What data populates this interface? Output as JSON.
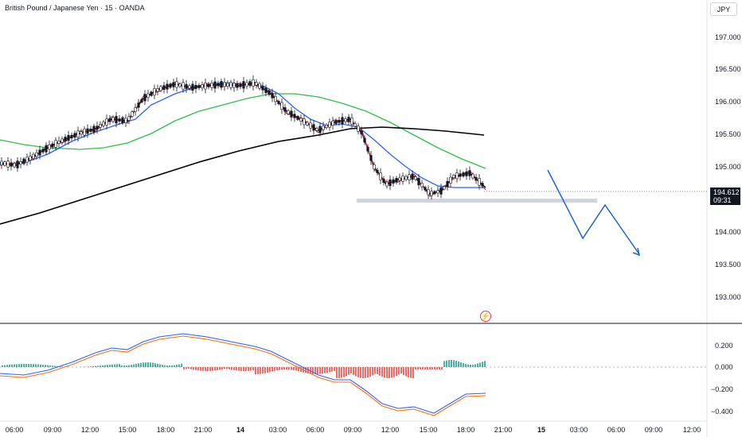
{
  "symbol": {
    "title": "British Pound / Japanese Yen · 15 · OANDA"
  },
  "currency_button": "JPY",
  "price_axis": {
    "labels": [
      "197.000",
      "196.500",
      "196.000",
      "195.500",
      "195.000",
      "194.000",
      "193.500",
      "193.000"
    ]
  },
  "last_price": {
    "price": "194.612",
    "countdown": "09:31"
  },
  "oscillator_axis": {
    "labels": [
      "0.200",
      "0.000",
      "−0.200",
      "−0.400"
    ]
  },
  "time_axis": {
    "labels": [
      "06:00",
      "09:00",
      "12:00",
      "15:00",
      "18:00",
      "21:00",
      "14",
      "03:00",
      "06:00",
      "09:00",
      "12:00",
      "15:00",
      "18:00",
      "21:00",
      "15",
      "03:00",
      "06:00",
      "09:00",
      "12:00"
    ]
  },
  "colors": {
    "ma_fast": "#e53935",
    "ma_mid": "#131722",
    "ma_blue": "#2962ff",
    "ma_green": "#2fbf4a",
    "ma_200": "#000000",
    "macd_line": "#2962ff",
    "signal_line": "#ff6d00",
    "hist_pos": "#26a69a",
    "hist_neg": "#ef5350",
    "projection": "#1e63d6",
    "support_zone": "#d1d4dc"
  },
  "icons": {
    "alert": "lightning-icon"
  }
}
